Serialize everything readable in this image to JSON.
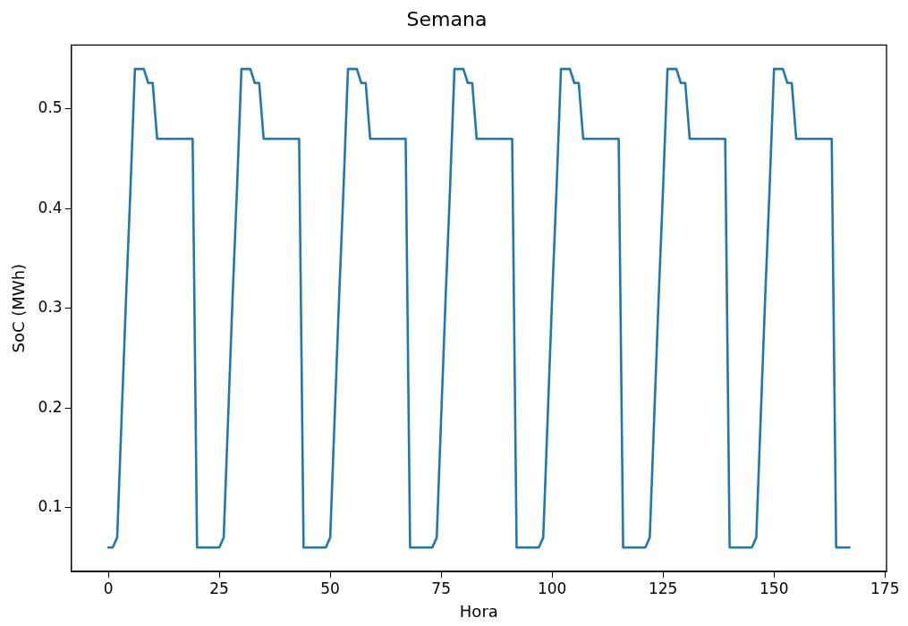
{
  "chart_data": {
    "type": "line",
    "title": "Semana",
    "xlabel": "Hora",
    "ylabel": "SoC (MWh)",
    "x": [
      0,
      1,
      2,
      3,
      4,
      5,
      6,
      7,
      8,
      9,
      10,
      11,
      12,
      13,
      14,
      15,
      16,
      17,
      18,
      19,
      20,
      21,
      22,
      23,
      24,
      25,
      26,
      27,
      28,
      29,
      30,
      31,
      32,
      33,
      34,
      35,
      36,
      37,
      38,
      39,
      40,
      41,
      42,
      43,
      44,
      45,
      46,
      47,
      48,
      49,
      50,
      51,
      52,
      53,
      54,
      55,
      56,
      57,
      58,
      59,
      60,
      61,
      62,
      63,
      64,
      65,
      66,
      67,
      68,
      69,
      70,
      71,
      72,
      73,
      74,
      75,
      76,
      77,
      78,
      79,
      80,
      81,
      82,
      83,
      84,
      85,
      86,
      87,
      88,
      89,
      90,
      91,
      92,
      93,
      94,
      95,
      96,
      97,
      98,
      99,
      100,
      101,
      102,
      103,
      104,
      105,
      106,
      107,
      108,
      109,
      110,
      111,
      112,
      113,
      114,
      115,
      116,
      117,
      118,
      119,
      120,
      121,
      122,
      123,
      124,
      125,
      126,
      127,
      128,
      129,
      130,
      131,
      132,
      133,
      134,
      135,
      136,
      137,
      138,
      139,
      140,
      141,
      142,
      143,
      144,
      145,
      146,
      147,
      148,
      149,
      150,
      151,
      152,
      153,
      154,
      155,
      156,
      157,
      158,
      159,
      160,
      161,
      162,
      163,
      164,
      165,
      166,
      167
    ],
    "series": [
      {
        "color": "#1f77b4",
        "values": [
          0.06,
          0.06,
          0.07,
          0.19,
          0.31,
          0.42,
          0.54,
          0.54,
          0.54,
          0.526,
          0.526,
          0.47,
          0.47,
          0.47,
          0.47,
          0.47,
          0.47,
          0.47,
          0.47,
          0.47,
          0.06,
          0.06,
          0.06,
          0.06,
          0.06,
          0.06,
          0.07,
          0.19,
          0.31,
          0.42,
          0.54,
          0.54,
          0.54,
          0.526,
          0.526,
          0.47,
          0.47,
          0.47,
          0.47,
          0.47,
          0.47,
          0.47,
          0.47,
          0.47,
          0.06,
          0.06,
          0.06,
          0.06,
          0.06,
          0.06,
          0.07,
          0.19,
          0.31,
          0.42,
          0.54,
          0.54,
          0.54,
          0.526,
          0.526,
          0.47,
          0.47,
          0.47,
          0.47,
          0.47,
          0.47,
          0.47,
          0.47,
          0.47,
          0.06,
          0.06,
          0.06,
          0.06,
          0.06,
          0.06,
          0.07,
          0.19,
          0.31,
          0.42,
          0.54,
          0.54,
          0.54,
          0.526,
          0.526,
          0.47,
          0.47,
          0.47,
          0.47,
          0.47,
          0.47,
          0.47,
          0.47,
          0.47,
          0.06,
          0.06,
          0.06,
          0.06,
          0.06,
          0.06,
          0.07,
          0.19,
          0.31,
          0.42,
          0.54,
          0.54,
          0.54,
          0.526,
          0.526,
          0.47,
          0.47,
          0.47,
          0.47,
          0.47,
          0.47,
          0.47,
          0.47,
          0.47,
          0.06,
          0.06,
          0.06,
          0.06,
          0.06,
          0.06,
          0.07,
          0.19,
          0.31,
          0.42,
          0.54,
          0.54,
          0.54,
          0.526,
          0.526,
          0.47,
          0.47,
          0.47,
          0.47,
          0.47,
          0.47,
          0.47,
          0.47,
          0.47,
          0.06,
          0.06,
          0.06,
          0.06,
          0.06,
          0.06,
          0.07,
          0.19,
          0.31,
          0.42,
          0.54,
          0.54,
          0.54,
          0.526,
          0.526,
          0.47,
          0.47,
          0.47,
          0.47,
          0.47,
          0.47,
          0.47,
          0.47,
          0.47,
          0.06,
          0.06,
          0.06,
          0.06
        ]
      }
    ],
    "xlim": [
      -8.35,
      175.35
    ],
    "xticks": [
      0,
      25,
      50,
      75,
      100,
      125,
      150,
      175
    ],
    "ylim": [
      0.036,
      0.564
    ],
    "yticks": [
      0.1,
      0.2,
      0.3,
      0.4,
      0.5
    ],
    "grid": false,
    "legend": false,
    "marker": "none",
    "line_style": "solid"
  }
}
